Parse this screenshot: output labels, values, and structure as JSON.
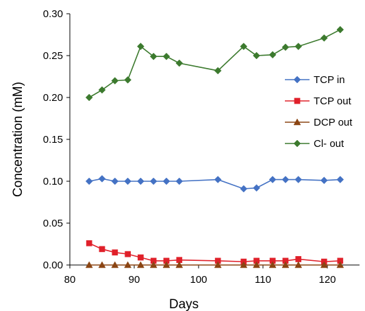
{
  "chart_data": {
    "type": "line",
    "xlabel": "Days",
    "ylabel": "Concentration (mM)",
    "xlim": [
      80,
      125
    ],
    "ylim": [
      0,
      0.3
    ],
    "x_ticks": [
      80,
      90,
      100,
      110,
      120
    ],
    "x_tick_labels": [
      "80",
      "90",
      "100",
      "110",
      "120"
    ],
    "y_ticks": [
      0,
      0.05,
      0.1,
      0.15,
      0.2,
      0.25,
      0.3
    ],
    "y_tick_labels": [
      "0.00",
      "0.05",
      "0.10",
      "0.15",
      "0.20",
      "0.25",
      "0.30"
    ],
    "grid": false,
    "legend_position": "right",
    "x": [
      83,
      85,
      87,
      89,
      91,
      93,
      95,
      97,
      103,
      107,
      109,
      111.5,
      113.5,
      115.5,
      119.5,
      122
    ],
    "series": [
      {
        "name": "TCP in",
        "color": "#4472C4",
        "marker": "diamond",
        "values": [
          0.1,
          0.103,
          0.1,
          0.1,
          0.1,
          0.1,
          0.1,
          0.1,
          0.102,
          0.091,
          0.092,
          0.102,
          0.102,
          0.102,
          0.101,
          0.102
        ]
      },
      {
        "name": "TCP out",
        "color": "#E0202A",
        "marker": "square",
        "values": [
          0.026,
          0.019,
          0.015,
          0.013,
          0.009,
          0.005,
          0.005,
          0.006,
          0.005,
          0.004,
          0.005,
          0.005,
          0.005,
          0.007,
          0.004,
          0.005
        ]
      },
      {
        "name": "DCP out",
        "color": "#8B4513",
        "marker": "triangle",
        "values": [
          0.0,
          0.0,
          0.0,
          0.0,
          0.0,
          0.0,
          0.0,
          0.0,
          0.0,
          0.0,
          0.0,
          0.0,
          0.0,
          0.0,
          0.0,
          0.0
        ]
      },
      {
        "name": "Cl- out",
        "color": "#3C7A2E",
        "marker": "diamond",
        "values": [
          0.2,
          0.209,
          0.22,
          0.221,
          0.261,
          0.249,
          0.249,
          0.241,
          0.232,
          0.261,
          0.25,
          0.251,
          0.26,
          0.261,
          0.271,
          0.281
        ]
      }
    ]
  }
}
